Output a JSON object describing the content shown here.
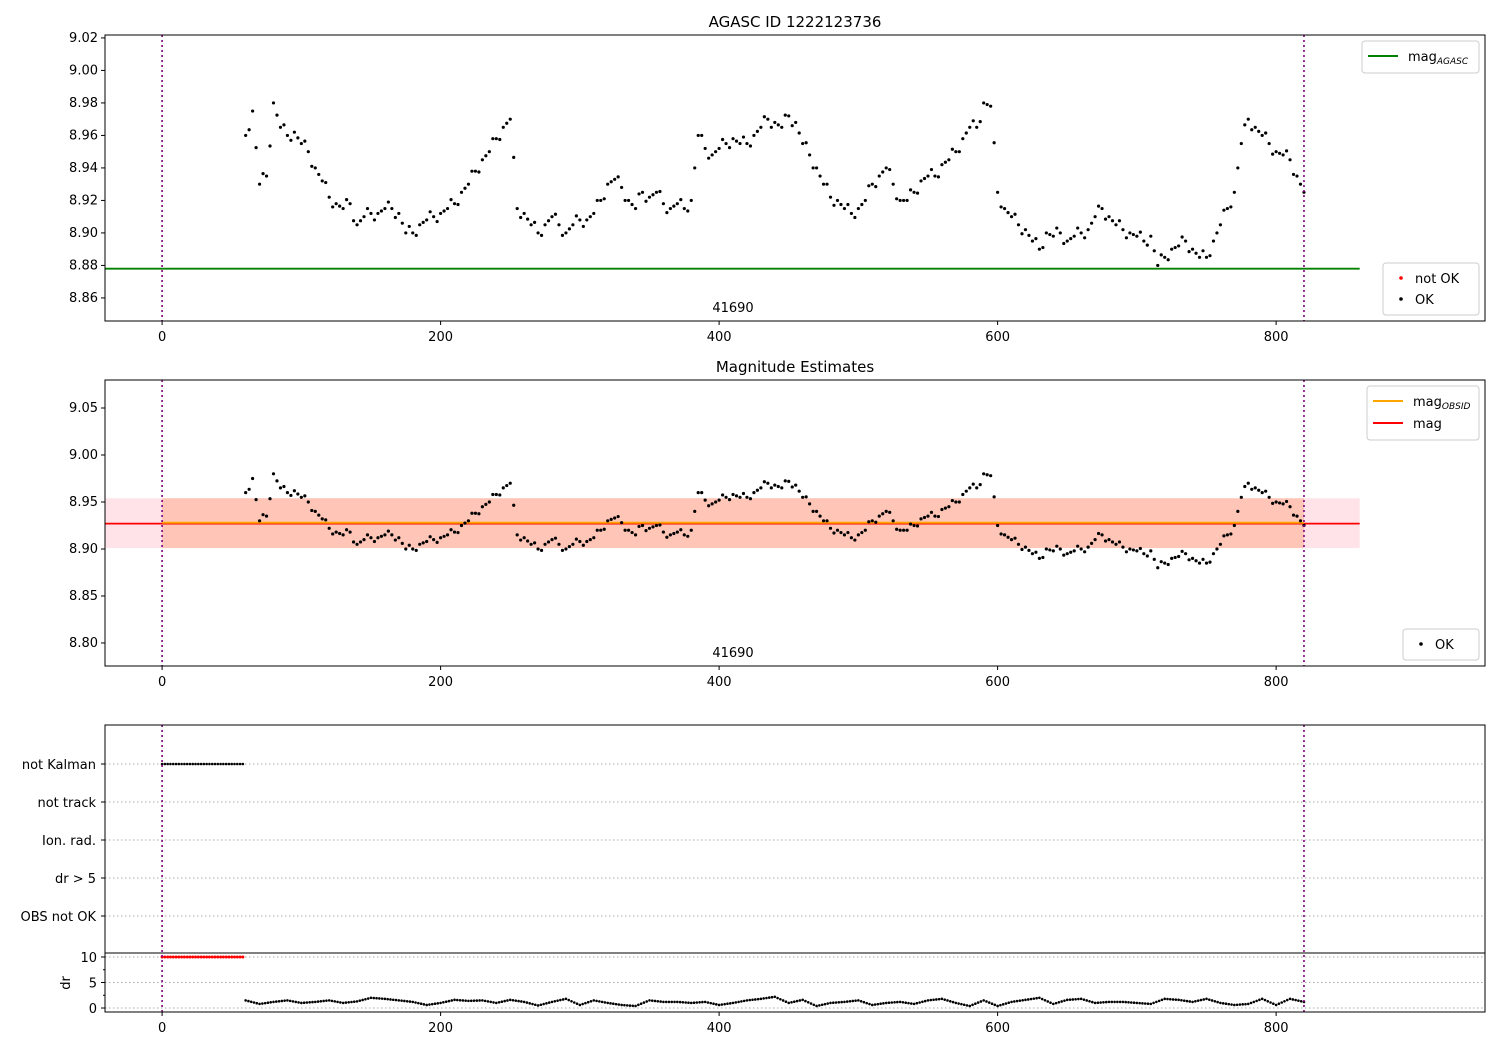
{
  "chart_data": [
    {
      "type": "scatter",
      "title": "AGASC ID 1222123736",
      "xlim": [
        -41,
        950
      ],
      "ylim": [
        8.8458,
        9.0218
      ],
      "xticks": [
        0,
        200,
        400,
        600,
        800
      ],
      "yticks": [
        8.86,
        8.88,
        8.9,
        8.92,
        8.94,
        8.96,
        8.98,
        9.0,
        9.02
      ],
      "ytick_labels": [
        "8.86",
        "8.88",
        "8.90",
        "8.92",
        "8.94",
        "8.96",
        "8.98",
        "9.00",
        "9.02"
      ],
      "annotation": "41690",
      "vlines": [
        0,
        820
      ],
      "mag_agasc": 8.878,
      "mag_agasc_xrange": [
        -41,
        860
      ],
      "legend_top": [
        {
          "label": "mag",
          "sub": "AGASC",
          "color": "#008000"
        }
      ],
      "legend_bottom": [
        {
          "label": "not OK",
          "color": "#ff0000"
        },
        {
          "label": "OK",
          "color": "#000000"
        }
      ]
    },
    {
      "type": "scatter",
      "title": "Magnitude Estimates",
      "xlim": [
        -41,
        950
      ],
      "ylim": [
        8.7755,
        9.0798
      ],
      "xticks": [
        0,
        200,
        400,
        600,
        800
      ],
      "yticks": [
        8.8,
        8.85,
        8.9,
        8.95,
        9.0,
        9.05
      ],
      "ytick_labels": [
        "8.80",
        "8.85",
        "8.90",
        "8.95",
        "9.00",
        "9.05"
      ],
      "annotation": "41690",
      "mag": 8.927,
      "mag_obsid": 8.928,
      "band": [
        8.901,
        8.954
      ],
      "legend_top": [
        {
          "label": "mag",
          "sub": "OBSID",
          "color": "#ffa500"
        },
        {
          "label": "mag",
          "sub": "",
          "color": "#ff0000"
        }
      ],
      "legend_bottom": [
        {
          "label": "OK",
          "color": "#000000"
        }
      ]
    },
    {
      "type": "scatter",
      "flag_labels": [
        "not Kalman",
        "not track",
        "Ion. rad.",
        "dr > 5",
        "OBS not OK"
      ],
      "not_kalman_xrange": [
        0,
        58
      ],
      "dr_ylabel": "dr",
      "dr_yticks": [
        0,
        5,
        10
      ],
      "dr_ylim": [
        -0.78,
        10.78
      ],
      "xticks": [
        0,
        200,
        400,
        600,
        800
      ]
    }
  ],
  "series": {
    "x_start": 60,
    "x_step": 5,
    "mag": [
      8.96,
      8.975,
      8.93,
      8.935,
      8.98,
      8.965,
      8.96,
      8.962,
      8.955,
      8.95,
      8.94,
      8.932,
      8.922,
      8.918,
      8.915,
      8.918,
      8.905,
      8.91,
      8.912,
      8.912,
      8.915,
      8.915,
      8.912,
      8.9,
      8.9,
      8.905,
      8.908,
      8.91,
      8.912,
      8.915,
      8.918,
      8.925,
      8.93,
      8.938,
      8.945,
      8.95,
      8.958,
      8.965,
      8.97,
      8.915,
      8.912,
      8.905,
      8.9,
      8.905,
      8.91,
      8.905,
      8.9,
      8.905,
      8.908,
      8.908,
      8.912,
      8.92,
      8.93,
      8.933,
      8.928,
      8.92,
      8.915,
      8.925,
      8.922,
      8.925,
      8.918,
      8.915,
      8.918,
      8.915,
      8.92,
      8.96,
      8.952,
      8.948,
      8.952,
      8.955,
      8.958,
      8.955,
      8.955,
      8.96,
      8.965,
      8.97,
      8.968,
      8.965,
      8.972,
      8.968,
      8.955,
      8.948,
      8.94,
      8.93,
      8.922,
      8.92,
      8.915,
      8.912,
      8.915,
      8.92,
      8.93,
      8.935,
      8.94,
      8.93,
      8.92,
      8.92,
      8.925,
      8.932,
      8.935,
      8.935,
      8.942,
      8.945,
      8.95,
      8.958,
      8.965,
      8.965,
      8.98,
      8.978,
      8.925,
      8.915,
      8.91,
      8.905,
      8.902,
      8.895,
      8.89,
      8.9,
      8.898,
      8.9,
      8.895,
      8.898,
      8.9,
      8.902,
      8.91,
      8.915,
      8.91,
      8.905,
      8.902,
      8.9,
      8.898,
      8.895,
      8.898,
      8.88,
      8.885,
      8.89,
      8.892,
      8.895,
      8.89,
      8.885,
      8.885,
      8.895,
      8.905,
      8.915,
      8.925,
      8.955,
      8.97,
      8.965,
      8.96,
      8.955,
      8.95,
      8.948,
      8.945,
      8.935,
      8.925
    ],
    "dr_x_start": 60,
    "dr_x_step": 10,
    "dr": [
      1.5,
      0.8,
      1.2,
      1.5,
      1.0,
      1.2,
      1.5,
      1.0,
      1.3,
      2.0,
      1.8,
      1.5,
      1.2,
      0.6,
      1.0,
      1.6,
      1.4,
      1.5,
      1.0,
      1.6,
      1.2,
      0.5,
      1.2,
      1.8,
      0.6,
      1.5,
      1.0,
      0.6,
      0.4,
      1.5,
      1.2,
      1.2,
      1.0,
      1.2,
      0.6,
      1.0,
      1.5,
      1.8,
      2.2,
      1.0,
      1.6,
      0.4,
      1.0,
      1.2,
      1.5,
      0.6,
      1.0,
      1.2,
      0.8,
      1.5,
      1.8,
      1.0,
      0.4,
      1.5,
      0.4,
      1.2,
      1.6,
      2.0,
      0.8,
      1.6,
      1.8,
      1.0,
      1.2,
      1.2,
      1.0,
      0.8,
      1.8,
      1.6,
      1.2,
      1.8,
      1.0,
      0.6,
      0.8,
      1.8,
      0.6,
      1.8,
      1.2
    ]
  }
}
